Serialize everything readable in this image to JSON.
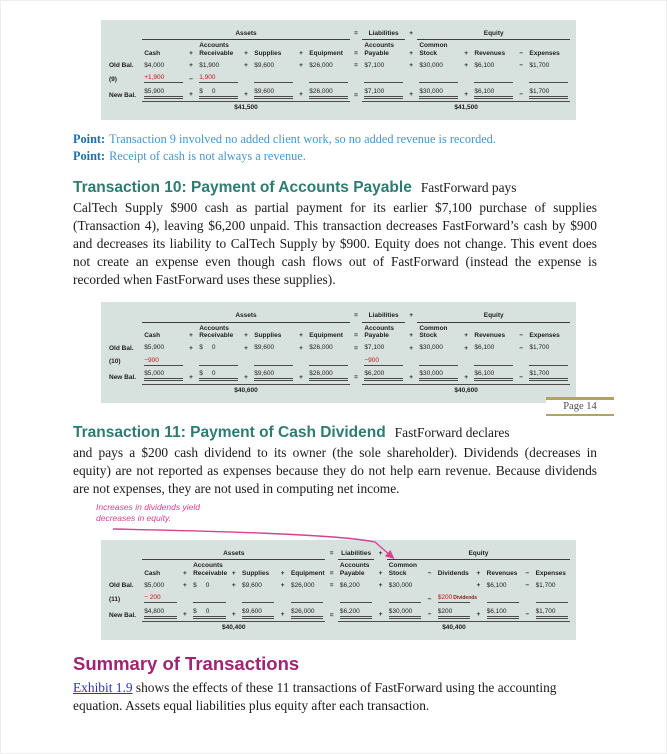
{
  "page": {
    "number_label": "Page 14"
  },
  "colors": {
    "table_bg": "#d7e2df",
    "heading_teal": "#2e7b72",
    "heading_magenta": "#a12472",
    "point_label_blue": "#1b6fb0",
    "point_text_blue": "#4596d0",
    "link_blue": "#2633cc",
    "transaction_red": "#c01616",
    "page_marker_gold": "#b2a266",
    "annotation_pink": "#d9418f"
  },
  "points": [
    {
      "label": "Point:",
      "text": "Transaction 9 involved no added client work, so no added revenue is recorded."
    },
    {
      "label": "Point:",
      "text": "Receipt of cash is not always a revenue."
    }
  ],
  "sections": [
    {
      "heading": "Transaction 10: Payment of Accounts Payable",
      "intro": "FastForward pays",
      "body": "CalTech Supply $900 cash as partial payment for its earlier $7,100 purchase of supplies (Transaction 4), leaving $6,200 unpaid. This transaction decreases FastForward’s cash by $900 and decreases its liability to CalTech Supply by $900. Equity does not change. This event does not create an expense even though cash flows out of FastForward (instead the expense is recorded when FastForward uses these supplies)."
    },
    {
      "heading": "Transaction 11: Payment of Cash Dividend",
      "intro": "FastForward declares",
      "body": "and pays a $200 cash dividend to its owner (the sole shareholder). Dividends (decreases in equity) are not reported as expenses because they do not help earn revenue. Because dividends are not expenses, they are not used in computing net income."
    }
  ],
  "summary": {
    "heading": "Summary of Transactions",
    "link": "Exhibit 1.9",
    "body_after_link": " shows the effects of these 11 transactions of FastForward using the accounting equation. Assets equal liabilities plus equity after each transaction."
  },
  "annotation": {
    "text": "Increases in dividends yield decreases in equity."
  },
  "tables": [
    {
      "name": "transaction-9-table",
      "groups": [
        {
          "label": "Assets",
          "span": 7,
          "rule": true
        },
        {
          "label": "=",
          "span": 1
        },
        {
          "label": "Liabilities",
          "span": 1,
          "rule": true
        },
        {
          "label": "+",
          "span": 1
        },
        {
          "label": "Equity",
          "span": 5,
          "rule": true
        }
      ],
      "headers": [
        "Cash",
        "+",
        "Accounts\nReceivable",
        "+",
        "Supplies",
        "+",
        "Equipment",
        "=",
        "Accounts\nPayable",
        "+",
        "Common\nStock",
        "+",
        "Revenues",
        "−",
        "Expenses"
      ],
      "rows": [
        {
          "label": "Old Bal.",
          "cells": [
            "$4,000",
            "+",
            "$1,900",
            "+",
            "$9,600",
            "+",
            "$26,000",
            "=",
            "$7,100",
            "+",
            "$30,000",
            "+",
            "$6,100",
            "−",
            "$1,700"
          ]
        },
        {
          "label": "(9)",
          "amt_class": "ul",
          "cells": [
            {
              "t": "+1,900",
              "red": true
            },
            {
              "t": "−",
              "red": true
            },
            {
              "t": "1,900",
              "red": true
            },
            "",
            "",
            "",
            "",
            "",
            "",
            "",
            "",
            "",
            "",
            "",
            ""
          ]
        },
        {
          "label": "New Bal.",
          "amt_class": "dul",
          "cells": [
            "$5,900",
            "+",
            "$     0",
            "+",
            "$9,600",
            "+",
            "$26,000",
            "=",
            "$7,100",
            "+",
            "$30,000",
            "+",
            "$6,100",
            "−",
            "$1,700"
          ]
        }
      ],
      "totals": [
        {
          "span": 7,
          "text": "$41,500",
          "brace": true
        },
        {
          "span": 1,
          "text": ""
        },
        {
          "span": 7,
          "text": "$41,500",
          "brace": true
        }
      ]
    },
    {
      "name": "transaction-10-table",
      "groups": [
        {
          "label": "Assets",
          "span": 7,
          "rule": true
        },
        {
          "label": "=",
          "span": 1
        },
        {
          "label": "Liabilities",
          "span": 1,
          "rule": true
        },
        {
          "label": "+",
          "span": 1
        },
        {
          "label": "Equity",
          "span": 5,
          "rule": true
        }
      ],
      "headers": [
        "Cash",
        "+",
        "Accounts\nReceivable",
        "+",
        "Supplies",
        "+",
        "Equipment",
        "=",
        "Accounts\nPayable",
        "+",
        "Common\nStock",
        "+",
        "Revenues",
        "−",
        "Expenses"
      ],
      "rows": [
        {
          "label": "Old Bal.",
          "cells": [
            "$5,900",
            "+",
            "$     0",
            "+",
            "$9,600",
            "+",
            "$26,000",
            "=",
            "$7,100",
            "+",
            "$30,000",
            "+",
            "$6,100",
            "−",
            "$1,700"
          ]
        },
        {
          "label": "(10)",
          "amt_class": "ul",
          "cells": [
            {
              "t": "−900",
              "red": true
            },
            "",
            "",
            "",
            "",
            "",
            "",
            "",
            {
              "t": "−900",
              "red": true
            },
            "",
            "",
            "",
            "",
            "",
            ""
          ]
        },
        {
          "label": "New Bal.",
          "amt_class": "dul",
          "cells": [
            "$5,000",
            "+",
            "$     0",
            "+",
            "$9,600",
            "+",
            "$26,000",
            "=",
            "$6,200",
            "+",
            "$30,000",
            "+",
            "$6,100",
            "−",
            "$1,700"
          ]
        }
      ],
      "totals": [
        {
          "span": 7,
          "text": "$40,600",
          "brace": true
        },
        {
          "span": 1,
          "text": ""
        },
        {
          "span": 7,
          "text": "$40,600",
          "brace": true
        }
      ]
    },
    {
      "name": "transaction-11-table",
      "groups": [
        {
          "label": "Assets",
          "span": 7,
          "rule": true
        },
        {
          "label": "=",
          "span": 1
        },
        {
          "label": "Liabilities",
          "span": 1,
          "rule": true
        },
        {
          "label": "+",
          "span": 1
        },
        {
          "label": "Equity",
          "span": 7,
          "rule": true
        }
      ],
      "headers": [
        "Cash",
        "+",
        "Accounts\nReceivable",
        "+",
        "Supplies",
        "+",
        "Equipment",
        "=",
        "Accounts\nPayable",
        "+",
        "Common\nStock",
        "−",
        "Dividends",
        "+",
        "Revenues",
        "−",
        "Expenses"
      ],
      "rows": [
        {
          "label": "Old Bal.",
          "cells": [
            "$5,000",
            "+",
            "$     0",
            "+",
            "$9,600",
            "+",
            "$26,000",
            "=",
            "$6,200",
            "+",
            "$30,000",
            "",
            "",
            "+",
            "$6,100",
            "−",
            "$1,700"
          ]
        },
        {
          "label": "(11)",
          "amt_class": "ul",
          "cells": [
            {
              "t": "− 200",
              "red": true
            },
            "",
            "",
            "",
            "",
            "",
            "",
            "",
            "",
            "",
            "",
            {
              "t": "−",
              "red": true
            },
            {
              "t": "$200",
              "red": true,
              "note": "Dividends"
            },
            "",
            "",
            "",
            ""
          ]
        },
        {
          "label": "New Bal.",
          "amt_class": "dul",
          "cells": [
            "$4,800",
            "+",
            "$     0",
            "+",
            "$9,600",
            "+",
            "$26,000",
            "=",
            "$6,200",
            "+",
            "$30,000",
            "−",
            "$200",
            "+",
            "$6,100",
            "−",
            "$1,700"
          ]
        }
      ],
      "totals": [
        {
          "span": 7,
          "text": "$40,400",
          "brace": true
        },
        {
          "span": 1,
          "text": ""
        },
        {
          "span": 9,
          "text": "$40,400",
          "brace": true
        }
      ]
    }
  ]
}
